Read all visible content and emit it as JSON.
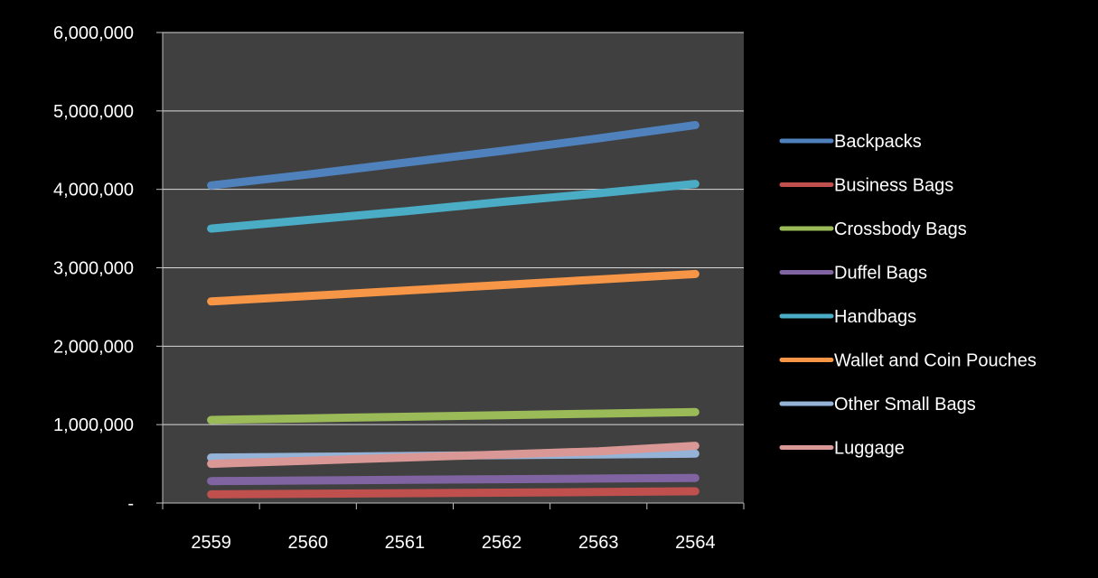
{
  "chart_data": {
    "type": "line",
    "x": [
      2559,
      2560,
      2561,
      2562,
      2563,
      2564
    ],
    "y_ticks": [
      "-",
      "1,000,000",
      "2,000,000",
      "3,000,000",
      "4,000,000",
      "5,000,000",
      "6,000,000"
    ],
    "ylim": [
      0,
      6000000
    ],
    "grid": true,
    "legend_position": "right",
    "series": [
      {
        "name": "Backpacks",
        "color": "#4f81bd",
        "values": [
          4050000,
          4190000,
          4340000,
          4490000,
          4650000,
          4820000
        ]
      },
      {
        "name": "Business Bags",
        "color": "#c0504d",
        "values": [
          110000,
          118000,
          125000,
          132000,
          140000,
          150000
        ]
      },
      {
        "name": "Crossbody Bags",
        "color": "#9bbb59",
        "values": [
          1060000,
          1080000,
          1100000,
          1120000,
          1140000,
          1160000
        ]
      },
      {
        "name": "Duffel Bags",
        "color": "#8064a2",
        "values": [
          280000,
          288000,
          296000,
          304000,
          312000,
          320000
        ]
      },
      {
        "name": "Handbags",
        "color": "#4bacc6",
        "values": [
          3500000,
          3610000,
          3720000,
          3840000,
          3950000,
          4070000
        ]
      },
      {
        "name": "Wallet and Coin Pouches",
        "color": "#f79646",
        "values": [
          2570000,
          2640000,
          2710000,
          2780000,
          2850000,
          2920000
        ]
      },
      {
        "name": "Other Small Bags",
        "color": "#95b3d7",
        "values": [
          580000,
          590000,
          600000,
          610000,
          620000,
          630000
        ]
      },
      {
        "name": "Luggage",
        "color": "#d99795",
        "values": [
          500000,
          540000,
          580000,
          620000,
          660000,
          730000
        ]
      }
    ],
    "colors": {
      "plot_background": "#404040",
      "page_background": "#000000",
      "gridline": "#d9d9d9",
      "axis": "#bfbfbf"
    }
  }
}
